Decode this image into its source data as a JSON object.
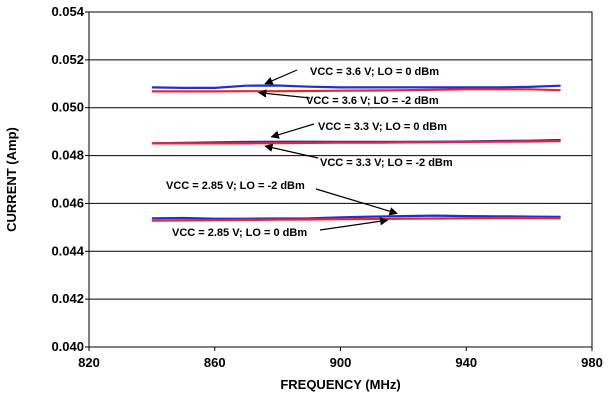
{
  "chart_data": {
    "type": "line",
    "title": "",
    "xlabel": "FREQUENCY (MHz)",
    "ylabel": "CURRENT (Amp)",
    "xlim": [
      820,
      980
    ],
    "ylim": [
      0.04,
      0.054
    ],
    "x_ticks": [
      820,
      860,
      900,
      940,
      980
    ],
    "y_ticks": [
      0.04,
      0.042,
      0.044,
      0.046,
      0.048,
      0.05,
      0.052,
      0.054
    ],
    "x_tick_labels": [
      "820",
      "860",
      "900",
      "940",
      "980"
    ],
    "y_tick_labels": [
      "0.040",
      "0.042",
      "0.044",
      "0.046",
      "0.048",
      "0.050",
      "0.052",
      "0.054"
    ],
    "grid": "horizontal",
    "legend": "none",
    "colors": {
      "lo_0dBm": "#1f2fd6",
      "lo_minus2dBm": "#e8262b"
    },
    "series": [
      {
        "color": "#1f2fd6",
        "x": [
          840,
          850,
          860,
          870,
          880,
          890,
          900,
          910,
          920,
          930,
          940,
          950,
          960,
          970
        ],
        "y": [
          0.05085,
          0.05083,
          0.05083,
          0.05092,
          0.05093,
          0.05088,
          0.05085,
          0.05085,
          0.05085,
          0.05085,
          0.05085,
          0.05085,
          0.05087,
          0.05092
        ]
      },
      {
        "color": "#e8262b",
        "x": [
          840,
          850,
          860,
          870,
          880,
          890,
          900,
          910,
          920,
          930,
          940,
          950,
          960,
          970
        ],
        "y": [
          0.05068,
          0.05068,
          0.05068,
          0.05069,
          0.05069,
          0.0507,
          0.05071,
          0.05072,
          0.05073,
          0.05075,
          0.05077,
          0.05077,
          0.05077,
          0.05073
        ]
      },
      {
        "color": "#1f2fd6",
        "x": [
          840,
          850,
          860,
          870,
          880,
          890,
          900,
          910,
          920,
          930,
          940,
          950,
          960,
          970
        ],
        "y": [
          0.04851,
          0.04853,
          0.04855,
          0.04857,
          0.04858,
          0.04858,
          0.04857,
          0.04857,
          0.04857,
          0.04858,
          0.04859,
          0.04861,
          0.04862,
          0.04865
        ]
      },
      {
        "color": "#e8262b",
        "x": [
          840,
          850,
          860,
          870,
          880,
          890,
          900,
          910,
          920,
          930,
          940,
          950,
          960,
          970
        ],
        "y": [
          0.04851,
          0.04851,
          0.04851,
          0.04851,
          0.04852,
          0.04853,
          0.04854,
          0.04854,
          0.04855,
          0.04856,
          0.04857,
          0.04858,
          0.04859,
          0.0486
        ]
      },
      {
        "color": "#1f2fd6",
        "x": [
          840,
          850,
          860,
          870,
          880,
          890,
          900,
          910,
          920,
          930,
          940,
          950,
          960,
          970
        ],
        "y": [
          0.04538,
          0.04539,
          0.04536,
          0.04536,
          0.04537,
          0.04538,
          0.04542,
          0.04545,
          0.04547,
          0.04549,
          0.04547,
          0.04546,
          0.04545,
          0.04544
        ]
      },
      {
        "color": "#e8262b",
        "x": [
          840,
          850,
          860,
          870,
          880,
          890,
          900,
          910,
          920,
          930,
          940,
          950,
          960,
          970
        ],
        "y": [
          0.04528,
          0.04529,
          0.0453,
          0.04531,
          0.04532,
          0.04533,
          0.04534,
          0.04535,
          0.04536,
          0.04537,
          0.04538,
          0.04539,
          0.04539,
          0.04538
        ]
      }
    ],
    "annotations": [
      {
        "text": "VCC = 3.6 V; LO = 0 dBm",
        "arrow_to": [
          876,
          0.051
        ]
      },
      {
        "text": "VCC = 3.6 V; LO = -2 dBm",
        "arrow_to": [
          874,
          0.05063
        ]
      },
      {
        "text": "VCC = 3.3 V; LO =  0 dBm",
        "arrow_to": [
          878,
          0.04878
        ]
      },
      {
        "text": "VCC = 3.3 V; LO = -2 dBm",
        "arrow_to": [
          876,
          0.0484
        ]
      },
      {
        "text": "VCC = 2.85 V; LO = -2 dBm",
        "arrow_to": [
          918,
          0.04558
        ]
      },
      {
        "text": "VCC = 2.85 V; LO = 0 dBm",
        "arrow_to": [
          915,
          0.0453
        ]
      }
    ]
  }
}
